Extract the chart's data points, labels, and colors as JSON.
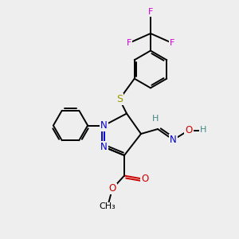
{
  "background_color": "#eeeeee",
  "figsize": [
    3.0,
    3.0
  ],
  "dpi": 100,
  "colors": {
    "C": "#000000",
    "N": "#0000cc",
    "O": "#cc0000",
    "S": "#999900",
    "F": "#cc00cc",
    "H": "#448888",
    "bond": "#000000"
  },
  "bond_lw": 1.4
}
